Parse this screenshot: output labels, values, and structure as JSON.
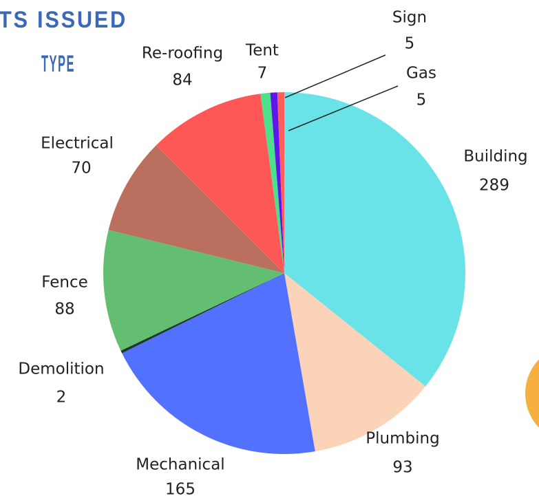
{
  "chart_data": {
    "type": "pie",
    "title": [
      "TS ISSUED",
      "TYPE"
    ],
    "categories": [
      "Building",
      "Plumbing",
      "Mechanical",
      "Demolition",
      "Fence",
      "Electrical",
      "Re-roofing",
      "Tent",
      "Sign",
      "Gas"
    ],
    "values": [
      289,
      93,
      165,
      2,
      88,
      70,
      84,
      7,
      5,
      5
    ],
    "colors": [
      "#6ae3e8",
      "#fbd3b8",
      "#5271ff",
      "#1f3a2a",
      "#63be72",
      "#bb6f5e",
      "#ff5656",
      "#4de08c",
      "#5e17eb",
      "#ff5c5c"
    ],
    "start_angle": 90,
    "direction": "clockwise"
  }
}
